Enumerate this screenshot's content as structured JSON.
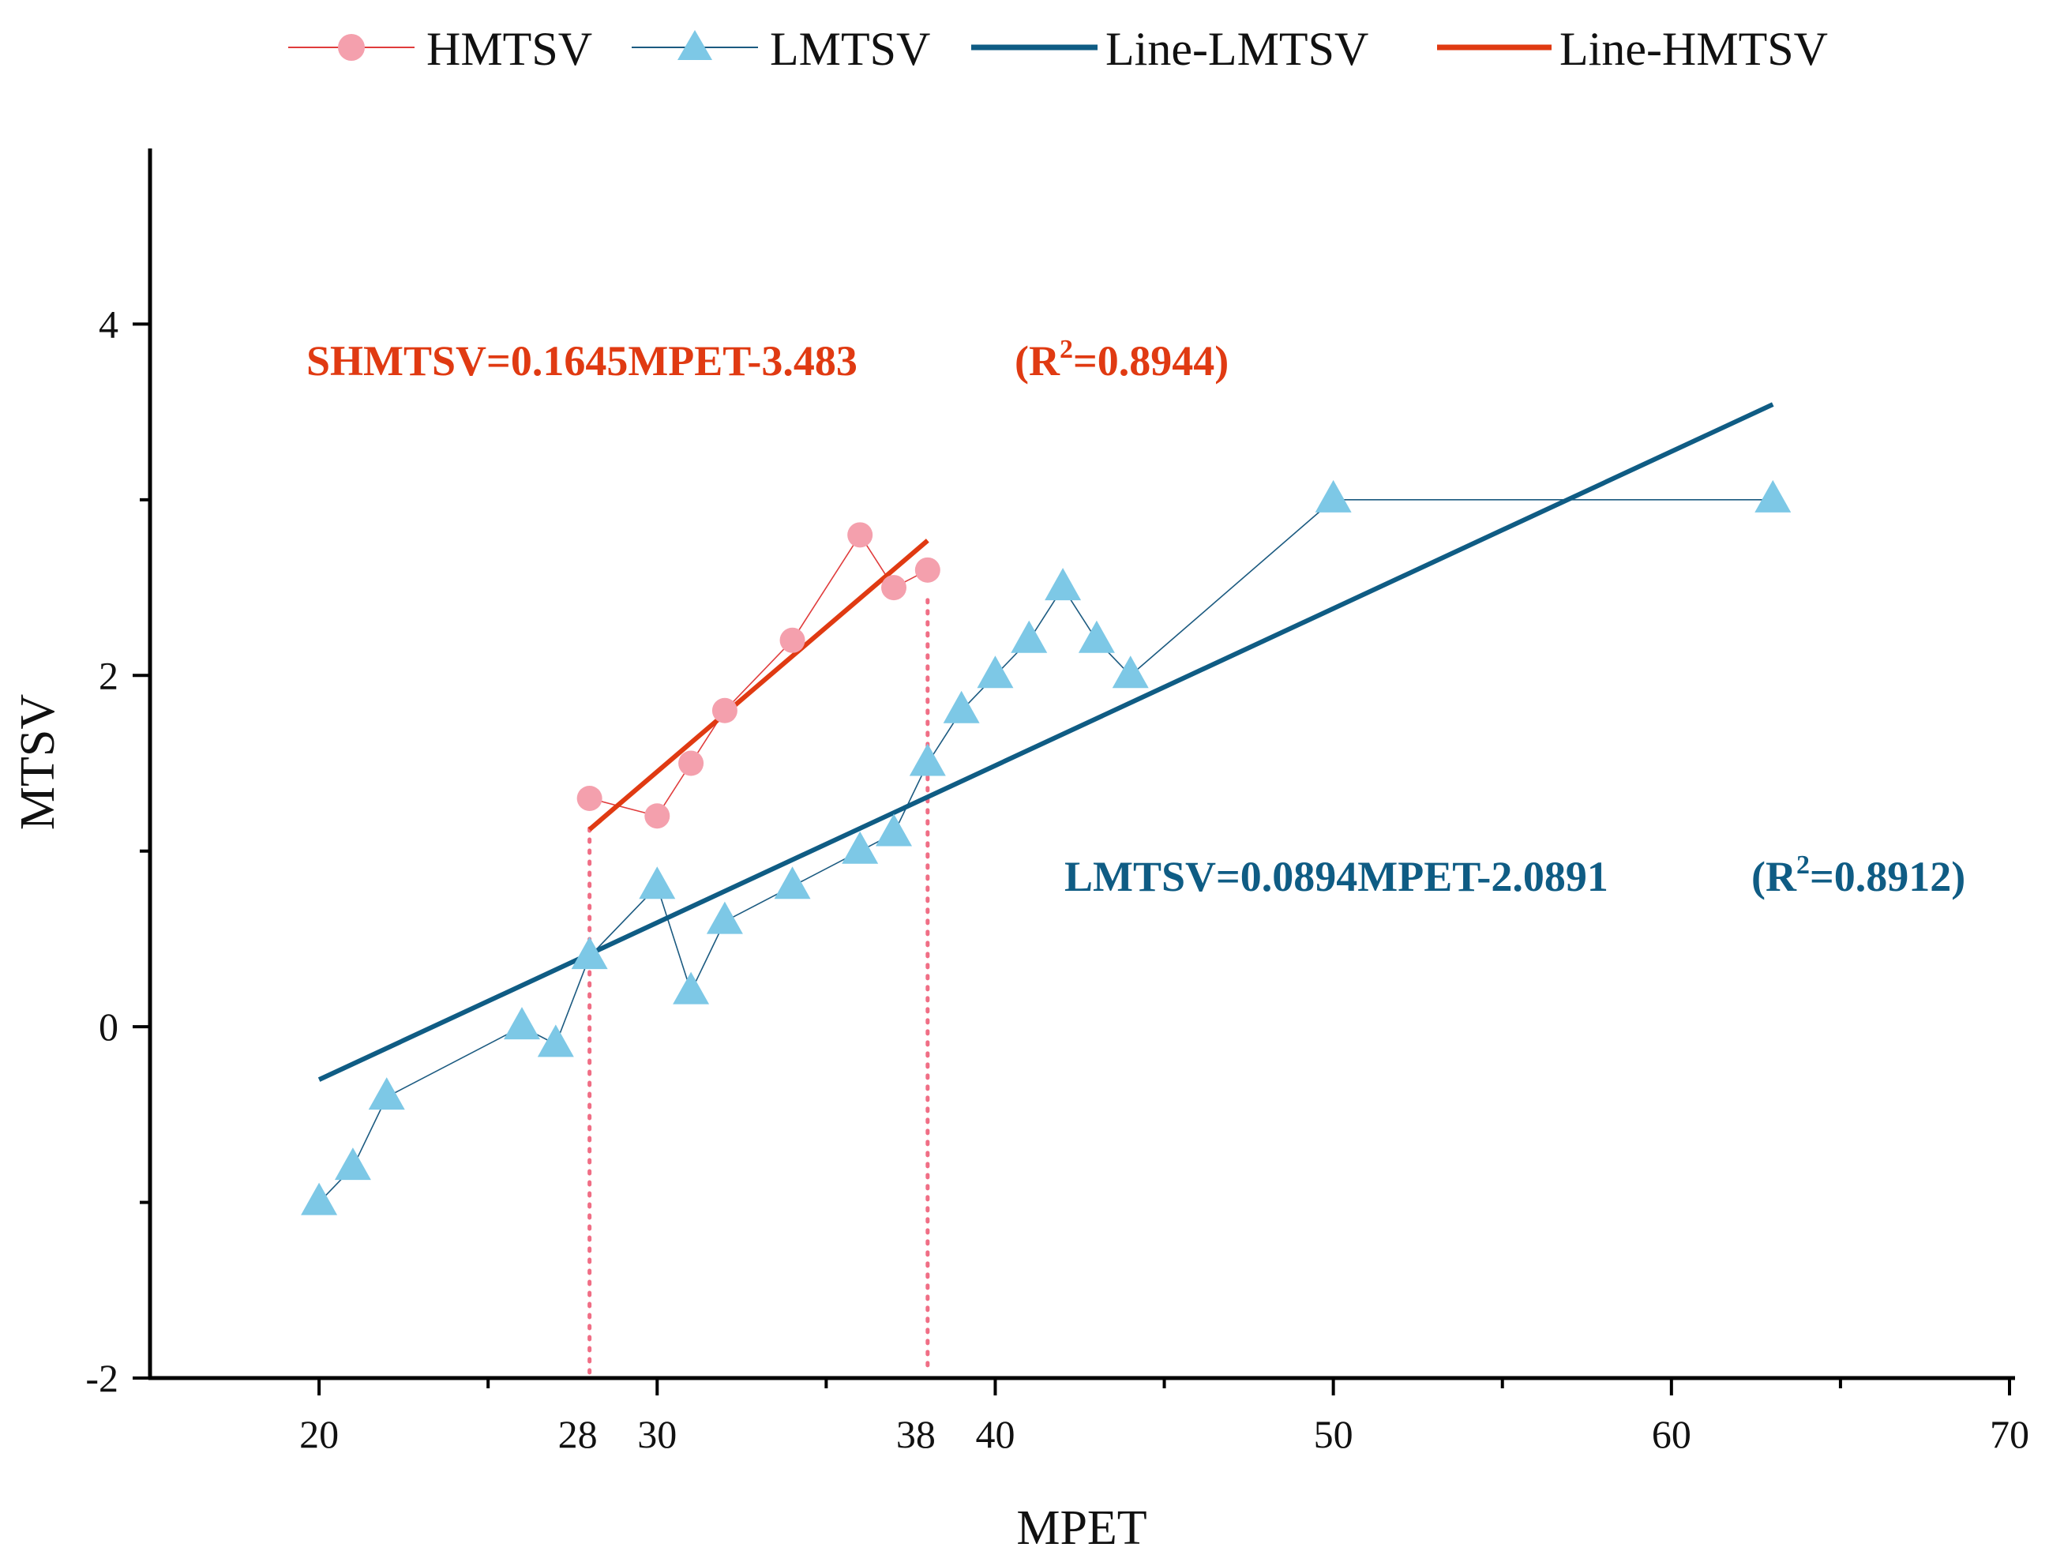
{
  "chart_data": {
    "type": "line",
    "xlabel": "MPET",
    "ylabel": "MTSV",
    "xlim": [
      15,
      70
    ],
    "ylim": [
      -2,
      5
    ],
    "x_ticks": [
      {
        "value": 20,
        "label": "20"
      },
      {
        "value": 30,
        "label": "30"
      },
      {
        "value": 40,
        "label": "40"
      },
      {
        "value": 50,
        "label": "50"
      },
      {
        "value": 60,
        "label": "60"
      },
      {
        "value": 70,
        "label": "70"
      }
    ],
    "x_minor_ticks": [
      25,
      35,
      45,
      55,
      65
    ],
    "y_ticks": [
      {
        "value": -2,
        "label": "-2"
      },
      {
        "value": 0,
        "label": "0"
      },
      {
        "value": 2,
        "label": "2"
      },
      {
        "value": 4,
        "label": "4"
      }
    ],
    "y_minor_ticks": [
      -1,
      1,
      3
    ],
    "highlight_x": [
      {
        "value": 28,
        "label": "28",
        "color": "#f06e85"
      },
      {
        "value": 38,
        "label": "38",
        "color": "#f06e85"
      }
    ],
    "series": [
      {
        "name": "HMTSV",
        "kind": "markers",
        "marker": "circle",
        "color": "#f4a0ad",
        "line_color": "#e03c3c",
        "points": [
          [
            28,
            1.3
          ],
          [
            30,
            1.2
          ],
          [
            31,
            1.5
          ],
          [
            32,
            1.8
          ],
          [
            34,
            2.2
          ],
          [
            36,
            2.8
          ],
          [
            37,
            2.5
          ],
          [
            38,
            2.6
          ]
        ]
      },
      {
        "name": "LMTSV",
        "kind": "markers",
        "marker": "triangle",
        "color": "#7dc8e6",
        "line_color": "#1b5a80",
        "points": [
          [
            20,
            -1.0
          ],
          [
            21,
            -0.8
          ],
          [
            22,
            -0.4
          ],
          [
            26,
            0.0
          ],
          [
            27,
            -0.1
          ],
          [
            28,
            0.4
          ],
          [
            30,
            0.8
          ],
          [
            31,
            0.2
          ],
          [
            32,
            0.6
          ],
          [
            34,
            0.8
          ],
          [
            36,
            1.0
          ],
          [
            37,
            1.1
          ],
          [
            38,
            1.5
          ],
          [
            39,
            1.8
          ],
          [
            40,
            2.0
          ],
          [
            41,
            2.2
          ],
          [
            42,
            2.5
          ],
          [
            43,
            2.2
          ],
          [
            44,
            2.0
          ],
          [
            50,
            3.0
          ],
          [
            63,
            3.0
          ]
        ]
      },
      {
        "name": "Line-LMTSV",
        "kind": "fit",
        "color": "#0f5c84",
        "slope": 0.0894,
        "intercept": -2.0891,
        "x_range": [
          20,
          63
        ]
      },
      {
        "name": "Line-HMTSV",
        "kind": "fit",
        "color": "#e03a12",
        "slope": 0.1645,
        "intercept": -3.483,
        "x_range": [
          28,
          38
        ]
      }
    ],
    "annotations": [
      {
        "id": "h",
        "color": "#e03a12",
        "prefix": "SHMTSV=0.1645MPET-3.483",
        "r_open": "(R",
        "r_sup": "2",
        "r_value": "=0.8944)"
      },
      {
        "id": "l",
        "color": "#0f5c84",
        "prefix": "LMTSV=0.0894MPET-2.0891",
        "r_open": "(R",
        "r_sup": "2",
        "r_value": "=0.8912)"
      }
    ],
    "legend": {
      "position": "top",
      "entries": [
        "HMTSV",
        "LMTSV",
        "Line-LMTSV",
        "Line-HMTSV"
      ]
    }
  }
}
